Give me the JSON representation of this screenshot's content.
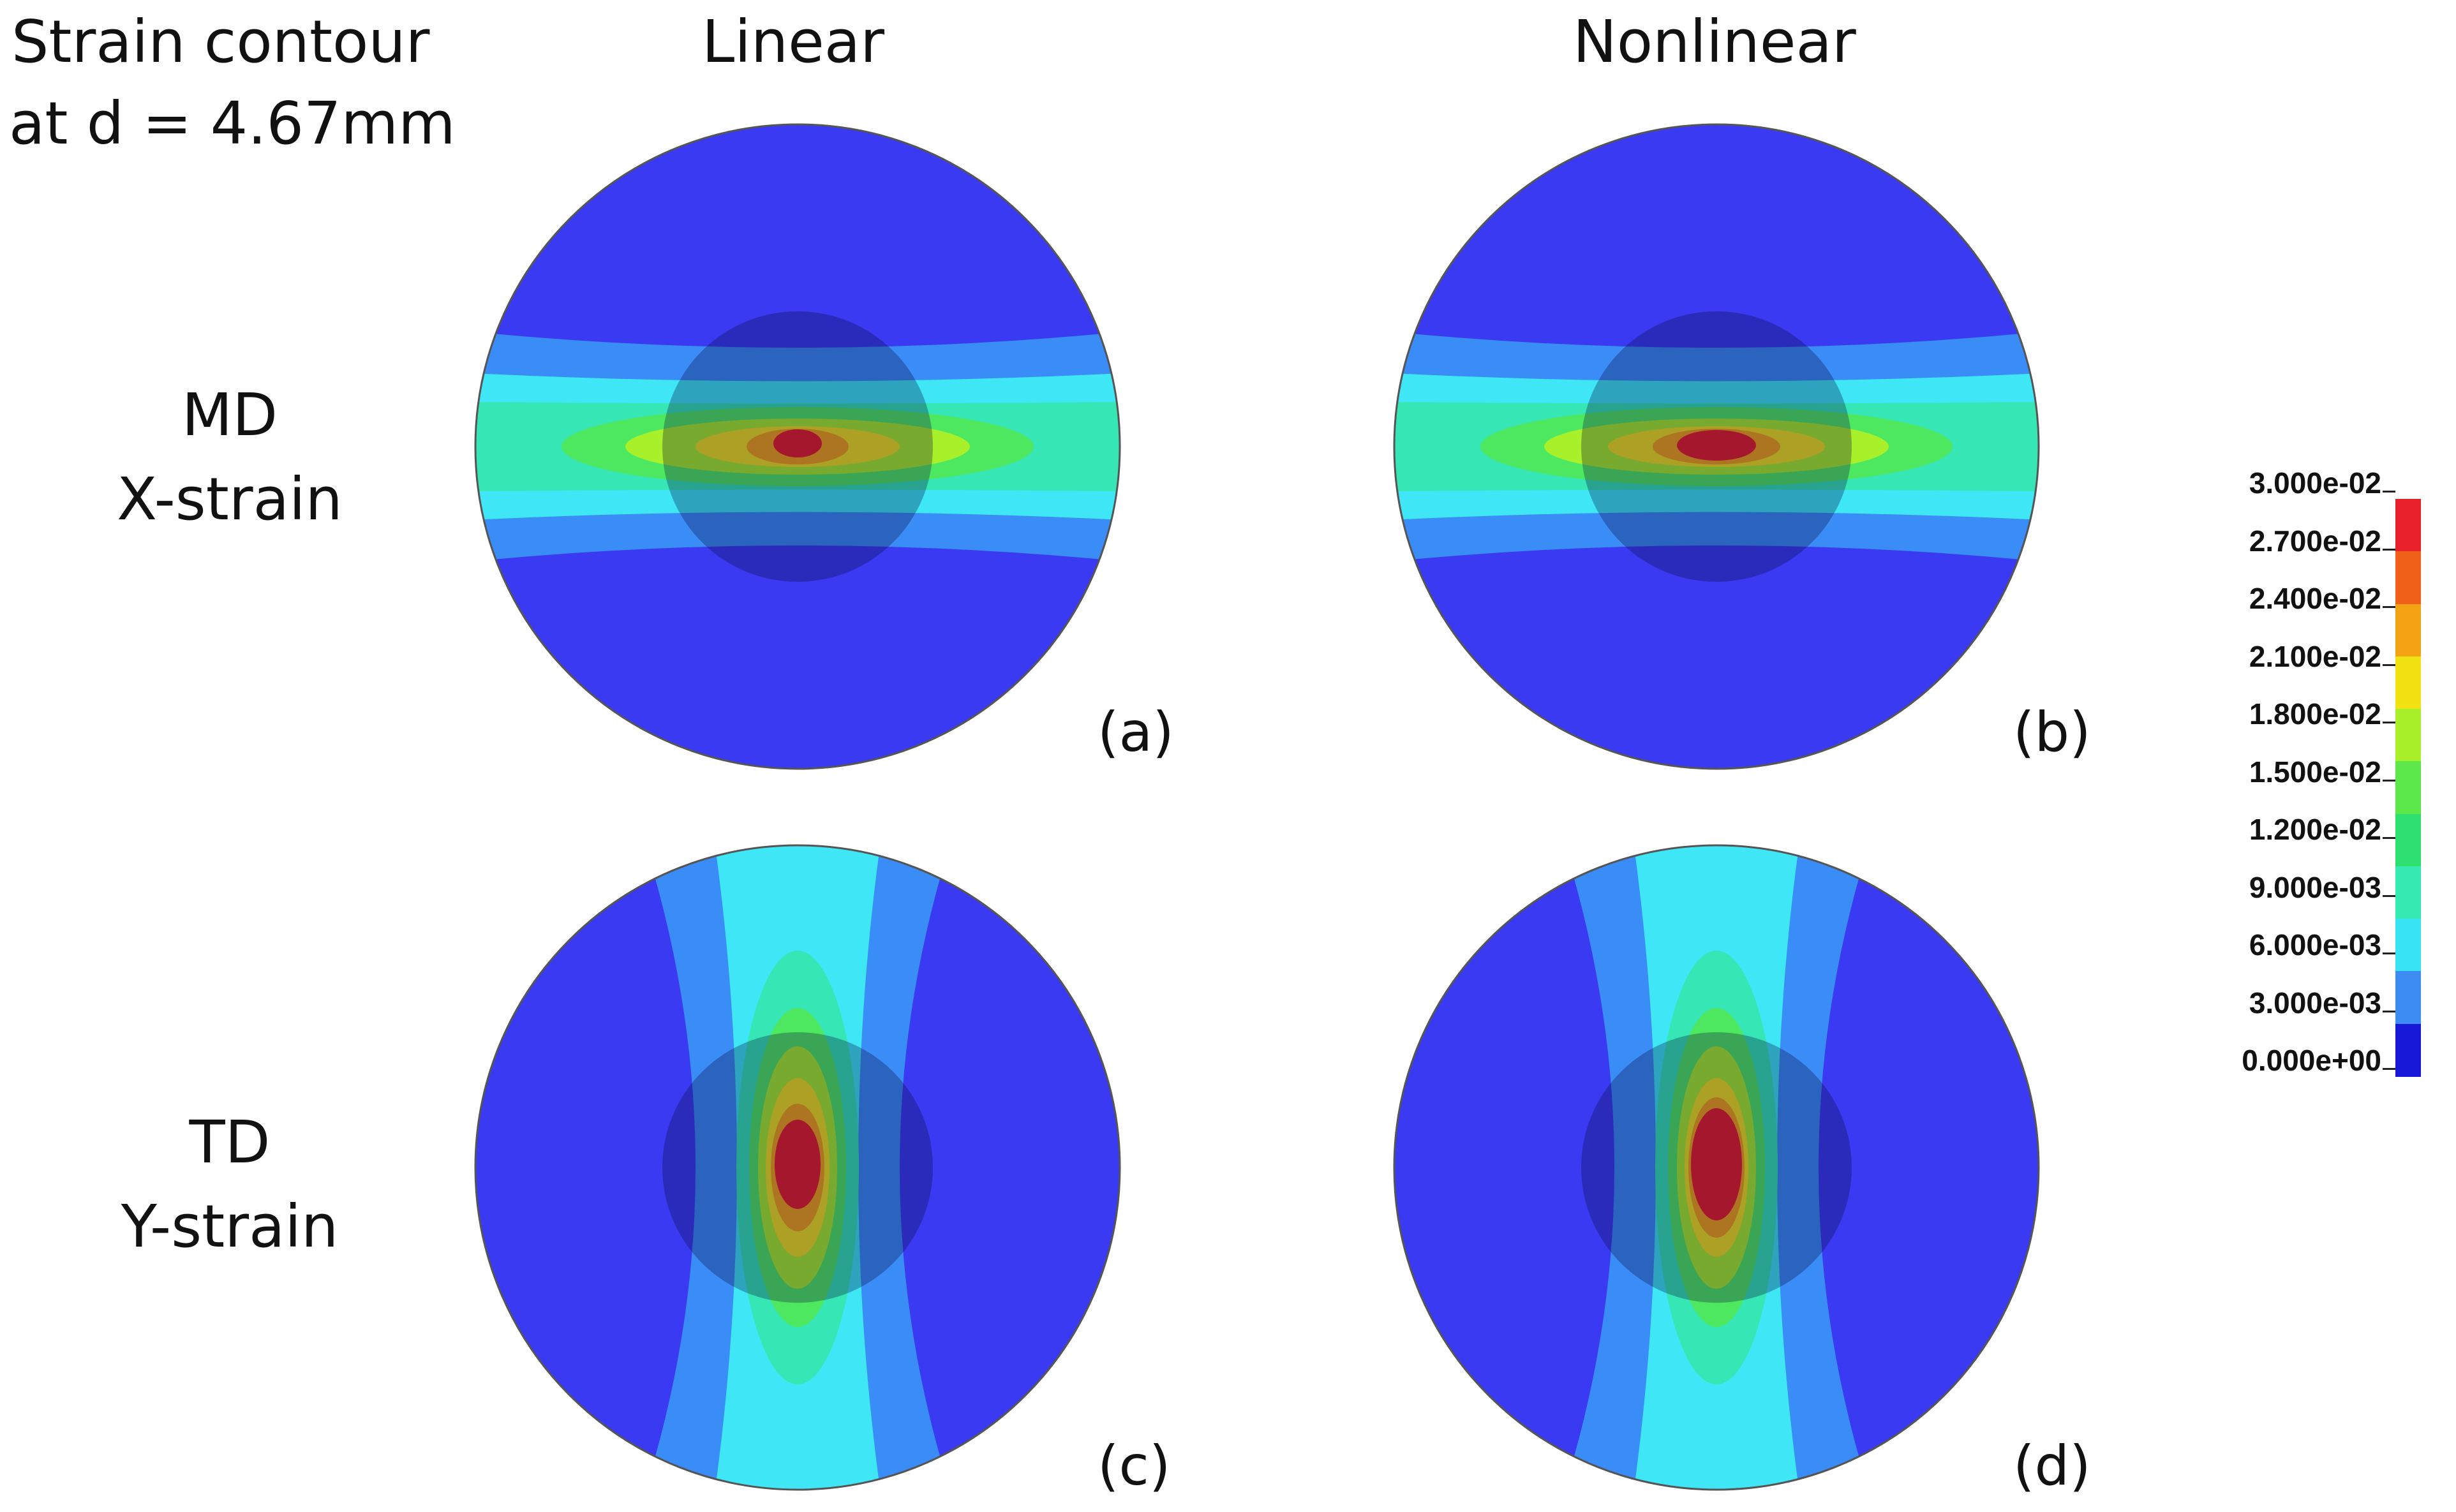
{
  "figure": {
    "caption_line1": "Strain contour",
    "caption_line2": "at d = 4.67mm",
    "col_headers": [
      "Linear",
      "Nonlinear"
    ],
    "rows": [
      {
        "label_line1": "MD",
        "label_line2": "X-strain"
      },
      {
        "label_line1": "TD",
        "label_line2": "Y-strain"
      }
    ],
    "panels": [
      {
        "id": "a",
        "label": "(a)",
        "orientation": "horizontal",
        "model": "Linear"
      },
      {
        "id": "b",
        "label": "(b)",
        "orientation": "horizontal",
        "model": "Nonlinear"
      },
      {
        "id": "c",
        "label": "(c)",
        "orientation": "vertical",
        "model": "Linear"
      },
      {
        "id": "d",
        "label": "(d)",
        "orientation": "vertical",
        "model": "Nonlinear"
      }
    ]
  },
  "legend": {
    "ticks": [
      "3.000e-02",
      "2.700e-02",
      "2.400e-02",
      "2.100e-02",
      "1.800e-02",
      "1.500e-02",
      "1.200e-02",
      "9.000e-03",
      "6.000e-03",
      "3.000e-03",
      "0.000e+00"
    ],
    "colors_top_to_bottom": [
      "#e8202a",
      "#f06018",
      "#f3a214",
      "#f3e212",
      "#a8f02a",
      "#5ce84a",
      "#2ee070",
      "#36eab4",
      "#38e4f4",
      "#3c8cf4",
      "#1818d8"
    ]
  },
  "colors": {
    "background_blue": "#3a3af2",
    "band_light_blue": "#3a8cf6",
    "band_cyan": "#3ee6f6",
    "band_teal": "#36e6b4",
    "band_green": "#4ee860",
    "band_yellow": "#f2e21a",
    "band_orange": "#f4a416",
    "band_red": "#e81e28",
    "indenter_shadow": "#0a0a3a"
  }
}
